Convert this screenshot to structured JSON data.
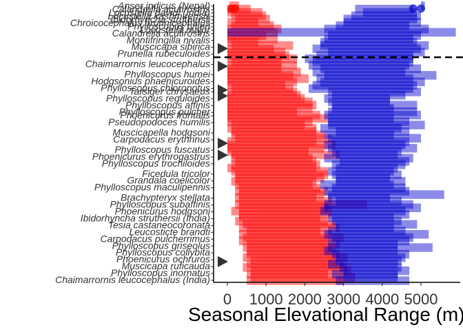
{
  "chart_data": {
    "type": "range-bar",
    "title": "",
    "xlabel": "Seasonal Elevational Range (m)",
    "ylabel": "",
    "xlim": [
      -300,
      5900
    ],
    "xticks": [
      0,
      1000,
      2000,
      3000,
      4000,
      5000
    ],
    "xtick_labels": [
      "0",
      "1000",
      "2000",
      "3000",
      "4000",
      "5000"
    ],
    "grid": false,
    "legend": "none",
    "reference_line": {
      "after_row": 8,
      "style": "dashed",
      "color": "#000000"
    },
    "seasons": [
      {
        "name": "winter",
        "color": "#ff0000"
      },
      {
        "name": "breeding",
        "color": "#0000cc"
      }
    ],
    "species": [
      "Anser indicus (Nepal)",
      "Calandrella acutirostris",
      "Locustella davidi (India)",
      "Locustella kashmirensis",
      "Ibidorhyncha struthersii",
      "Chroicocephalus brunnicephalus",
      "Phylloscopus tytleri",
      "Locustella major",
      "Calandrella acutirostris",
      "Montifringilla nivalis",
      "Muscicapa sibirica",
      "Prunella rubeculoides",
      "Chaimarrornis leucocephalus",
      "Phylloscopus humei",
      "Hodgsonius phaenicuroides",
      "Phylloscopus chloronotus",
      "Tarsiger chrysaeus",
      "Phylloscopus reguloides",
      "Phylloscopus affinis",
      "Phylloscopus pulcher",
      "Phoenicurus frontalis",
      "Pseudopodoces humilis",
      "Muscicapella hodgsoni",
      "Carpodacus erythrinus",
      "Phylloscopus fuscatus",
      "Phoenicurus erythrogastrus",
      "Phylloscopus trochiloides",
      "Ficedula tricolor",
      "Grandala coelicolor",
      "Phylloscopus maculipennis",
      "Brachypteryx stellata",
      "Phylloscopus subaffinis",
      "Phoenicurus hodgsoni",
      "Ibidorhyncha struthersii (India)",
      "Tesia castaneocoronata",
      "Leucosticte brandti",
      "Carpodacus pulcherrimus",
      "Phylloscopus griseolus",
      "Phylloscopus collybita",
      "Phoenicurus ochruros",
      "Muscicapa ruficauda",
      "Phylloscopus inornatus",
      "Chaimarrornis leucocephalus (India)"
    ],
    "label_rows": [
      0,
      1,
      2,
      3,
      4,
      5,
      6,
      7,
      8,
      10,
      12,
      14,
      17,
      20,
      22,
      24,
      25,
      27,
      29,
      31,
      32,
      34,
      37,
      39,
      42,
      44,
      46,
      49,
      51,
      53,
      56,
      58,
      60,
      62,
      64,
      66,
      68,
      70,
      72,
      74,
      76,
      78,
      80
    ],
    "triangle_rows": [
      7,
      10,
      14,
      15,
      23,
      25,
      43
    ],
    "winter": [
      [
        50,
        300
      ],
      [
        0,
        600
      ],
      [
        0,
        900
      ],
      [
        100,
        1000
      ],
      [
        200,
        1100
      ],
      [
        0,
        800
      ],
      [
        100,
        1200
      ],
      [
        0,
        1400
      ],
      [
        0,
        1300
      ],
      [
        0,
        1000
      ],
      [
        0,
        1300
      ],
      [
        0,
        800
      ],
      [
        100,
        1700
      ],
      [
        0,
        1200
      ],
      [
        0,
        1500
      ],
      [
        0,
        1600
      ],
      [
        0,
        1800
      ],
      [
        100,
        1400
      ],
      [
        0,
        1800
      ],
      [
        0,
        1400
      ],
      [
        0,
        1900
      ],
      [
        0,
        1700
      ],
      [
        0,
        2100
      ],
      [
        0,
        1800
      ],
      [
        0,
        1500
      ],
      [
        100,
        1700
      ],
      [
        0,
        1800
      ],
      [
        0,
        1900
      ],
      [
        0,
        2000
      ],
      [
        0,
        2200
      ],
      [
        0,
        2300
      ],
      [
        0,
        2200
      ],
      [
        0,
        1800
      ],
      [
        0,
        2400
      ],
      [
        0,
        2600
      ],
      [
        0,
        2200
      ],
      [
        100,
        2000
      ],
      [
        0,
        2300
      ],
      [
        100,
        2300
      ],
      [
        100,
        2500
      ],
      [
        200,
        2700
      ],
      [
        0,
        2300
      ],
      [
        0,
        2800
      ],
      [
        0,
        2500
      ],
      [
        0,
        2100
      ],
      [
        100,
        2900
      ],
      [
        100,
        2200
      ],
      [
        200,
        2300
      ],
      [
        100,
        2400
      ],
      [
        0,
        2300
      ],
      [
        100,
        2600
      ],
      [
        200,
        2600
      ],
      [
        200,
        2500
      ],
      [
        100,
        2300
      ],
      [
        200,
        2200
      ],
      [
        300,
        2400
      ],
      [
        200,
        2600
      ],
      [
        300,
        2500
      ],
      [
        200,
        2300
      ],
      [
        300,
        2700
      ],
      [
        200,
        3600
      ],
      [
        300,
        2600
      ],
      [
        100,
        2700
      ],
      [
        300,
        2700
      ],
      [
        300,
        2400
      ],
      [
        200,
        2600
      ],
      [
        400,
        2800
      ],
      [
        300,
        2900
      ],
      [
        500,
        2400
      ],
      [
        300,
        2700
      ],
      [
        400,
        3000
      ],
      [
        300,
        2600
      ],
      [
        500,
        2900
      ],
      [
        400,
        2800
      ],
      [
        500,
        2700
      ],
      [
        500,
        2900
      ],
      [
        400,
        3100
      ],
      [
        600,
        2800
      ],
      [
        500,
        3000
      ],
      [
        400,
        3100
      ],
      [
        600,
        3200
      ],
      [
        500,
        2600
      ],
      [
        600,
        3300
      ],
      [
        500,
        3000
      ]
    ],
    "breeding": [
      [
        5000,
        5100
      ],
      [
        3300,
        4800
      ],
      [
        3500,
        4900
      ],
      [
        3200,
        5000
      ],
      [
        3000,
        4900
      ],
      [
        3000,
        5000
      ],
      [
        2800,
        4700
      ],
      [
        2500,
        5200
      ],
      [
        0,
        5900
      ],
      [
        2600,
        5000
      ],
      [
        2500,
        4800
      ],
      [
        2400,
        4900
      ],
      [
        2400,
        5200
      ],
      [
        2200,
        5000
      ],
      [
        2600,
        5100
      ],
      [
        2300,
        4800
      ],
      [
        2000,
        4800
      ],
      [
        2200,
        4800
      ],
      [
        2100,
        4700
      ],
      [
        2400,
        5000
      ],
      [
        2200,
        4600
      ],
      [
        2500,
        5400
      ],
      [
        2300,
        4800
      ],
      [
        2400,
        5100
      ],
      [
        2200,
        4900
      ],
      [
        2100,
        4800
      ],
      [
        2600,
        5000
      ],
      [
        2700,
        4600
      ],
      [
        2500,
        4200
      ],
      [
        2600,
        4200
      ],
      [
        2700,
        4900
      ],
      [
        2700,
        4300
      ],
      [
        2600,
        4900
      ],
      [
        2500,
        5000
      ],
      [
        2600,
        4300
      ],
      [
        2600,
        4700
      ],
      [
        2600,
        5100
      ],
      [
        2400,
        4500
      ],
      [
        2800,
        4700
      ],
      [
        2500,
        4300
      ],
      [
        2600,
        5000
      ],
      [
        2700,
        4700
      ],
      [
        2500,
        4600
      ],
      [
        2600,
        4900
      ],
      [
        2700,
        4500
      ],
      [
        2800,
        4400
      ],
      [
        2500,
        4800
      ],
      [
        2900,
        4700
      ],
      [
        2700,
        4600
      ],
      [
        2800,
        4400
      ],
      [
        2600,
        4300
      ],
      [
        2700,
        4500
      ],
      [
        2800,
        4200
      ],
      [
        2800,
        4600
      ],
      [
        2400,
        4300
      ],
      [
        2700,
        4600
      ],
      [
        2500,
        4700
      ],
      [
        2600,
        5600
      ],
      [
        2600,
        4200
      ],
      [
        2800,
        4500
      ],
      [
        2500,
        4800
      ],
      [
        2500,
        5000
      ],
      [
        2400,
        4600
      ],
      [
        2700,
        4700
      ],
      [
        2600,
        4300
      ],
      [
        2700,
        4500
      ],
      [
        2800,
        4900
      ],
      [
        2800,
        4300
      ],
      [
        2600,
        4600
      ],
      [
        2500,
        5200
      ],
      [
        2700,
        4800
      ],
      [
        2600,
        4700
      ],
      [
        2800,
        4400
      ],
      [
        2600,
        5300
      ],
      [
        2500,
        4400
      ],
      [
        2700,
        4700
      ],
      [
        2800,
        4600
      ],
      [
        2800,
        4500
      ],
      [
        2600,
        4400
      ],
      [
        2900,
        4500
      ],
      [
        3000,
        4700
      ],
      [
        2700,
        4400
      ],
      [
        3000,
        4400
      ],
      [
        2800,
        4700
      ]
    ],
    "points": [
      {
        "row": 0,
        "x": 200,
        "season": "winter"
      },
      {
        "row": 0,
        "x": 100,
        "season": "winter"
      },
      {
        "row": 0,
        "x": 4800,
        "season": "breeding"
      },
      {
        "row": 0,
        "x": 5000,
        "season": "breeding"
      }
    ]
  }
}
